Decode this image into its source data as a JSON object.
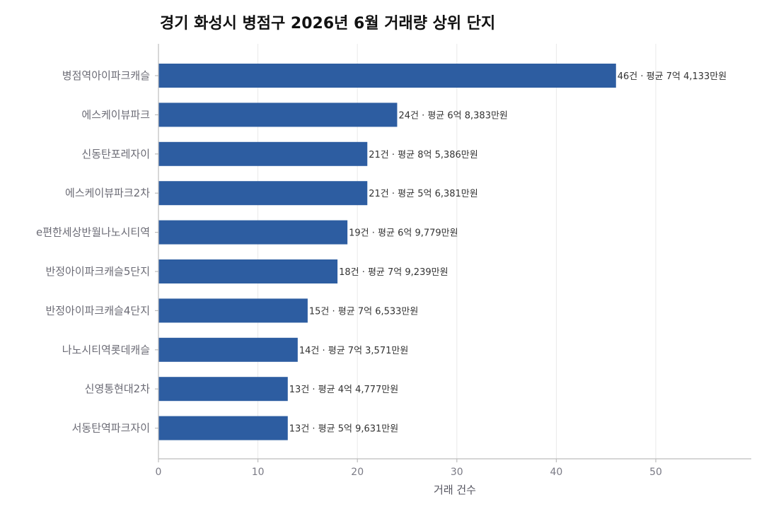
{
  "chart_data": {
    "type": "bar",
    "orientation": "horizontal",
    "title": "경기 화성시 병점구 2026년 6월 거래량 상위 단지",
    "xlabel": "거래 건수",
    "ylabel": "",
    "xlim": [
      0,
      59.6
    ],
    "xticks": [
      0,
      10,
      20,
      30,
      40,
      50
    ],
    "grid": true,
    "bar_color": "#2d5da1",
    "categories": [
      "병점역아이파크캐슬",
      "에스케이뷰파크",
      "신동탄포레자이",
      "에스케이뷰파크2차",
      "e편한세상반월나노시티역",
      "반정아이파크캐슬5단지",
      "반정아이파크캐슬4단지",
      "나노시티역롯데캐슬",
      "신영통현대2차",
      "서동탄역파크자이"
    ],
    "values": [
      46,
      24,
      21,
      21,
      19,
      18,
      15,
      14,
      13,
      13
    ],
    "data_labels": [
      "46건 · 평균 7억 4,133만원",
      "24건 · 평균 6억 8,383만원",
      "21건 · 평균 8억 5,386만원",
      "21건 · 평균 5억 6,381만원",
      "19건 · 평균 6억 9,779만원",
      "18건 · 평균 7억 9,239만원",
      "15건 · 평균 7억 6,533만원",
      "14건 · 평균 7억 3,571만원",
      "13건 · 평균 4억 4,777만원",
      "13건 · 평균 5억 9,631만원"
    ]
  }
}
